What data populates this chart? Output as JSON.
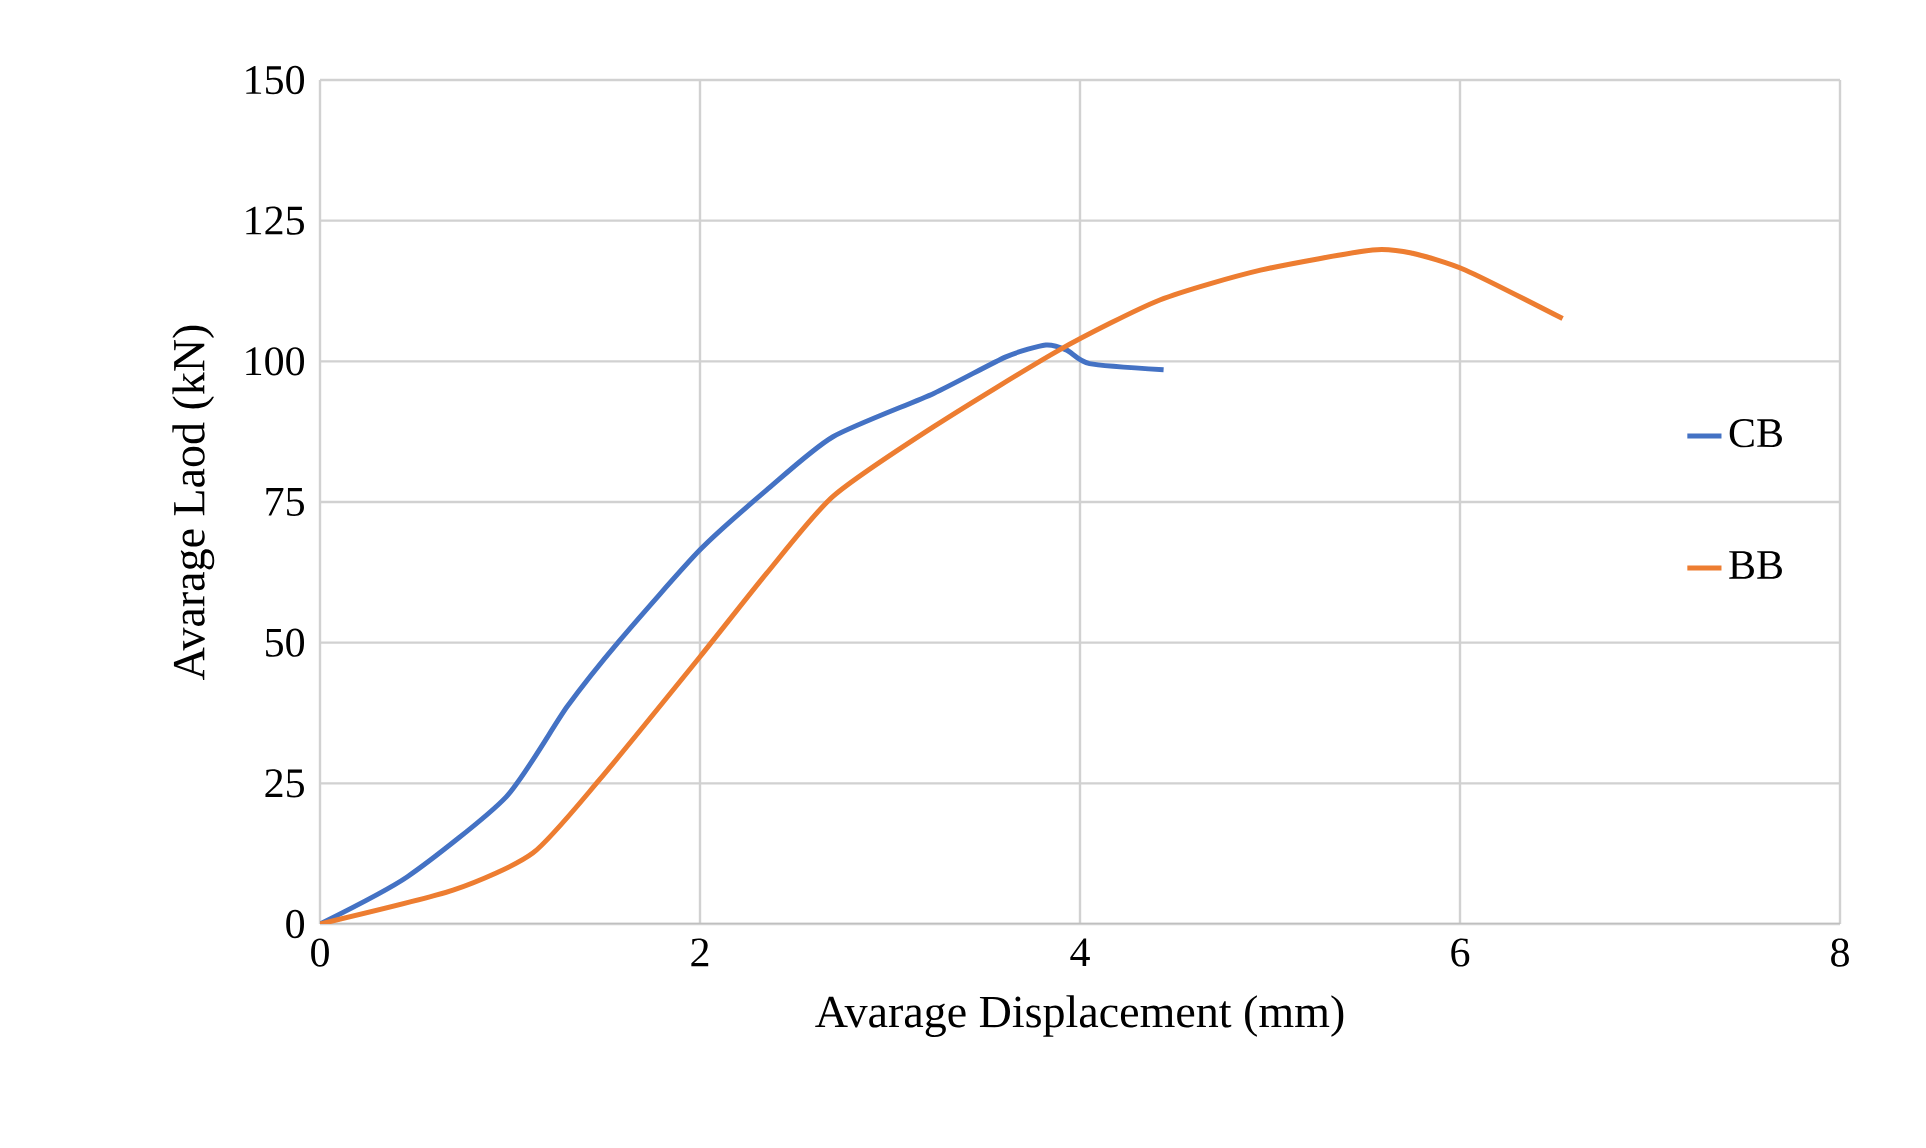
{
  "chart_data": {
    "type": "line",
    "xlabel": "Avarage Displacement (mm)",
    "ylabel": "Avarage Laod (kN)",
    "xlim": [
      0,
      8
    ],
    "ylim": [
      0,
      150
    ],
    "xticks": [
      0,
      2,
      4,
      6,
      8
    ],
    "yticks": [
      0,
      25,
      50,
      75,
      100,
      125,
      150
    ],
    "grid": true,
    "legend": "right",
    "marker": "none",
    "series": [
      {
        "name": "CB",
        "color": "#4472c4",
        "x": [
          0,
          0.46,
          0.98,
          1.3,
          1.58,
          2.0,
          2.35,
          2.7,
          3.23,
          3.61,
          3.82,
          3.93,
          4.05,
          4.44
        ],
        "values": [
          0,
          8.4,
          22.6,
          38.6,
          50.5,
          66.5,
          77.1,
          86.6,
          94.3,
          100.8,
          102.9,
          102,
          99.6,
          98.5
        ]
      },
      {
        "name": "BB",
        "color": "#ed7d31",
        "x": [
          0,
          0.7,
          1.12,
          1.47,
          2.0,
          2.35,
          2.7,
          3.23,
          3.89,
          4.42,
          4.95,
          5.54,
          5.75,
          6.03,
          6.54
        ],
        "values": [
          0,
          6.0,
          12.6,
          25.6,
          47.5,
          62.3,
          76.0,
          88.4,
          102,
          110.9,
          116.2,
          119.8,
          119.2,
          116.2,
          107.6
        ]
      }
    ]
  }
}
